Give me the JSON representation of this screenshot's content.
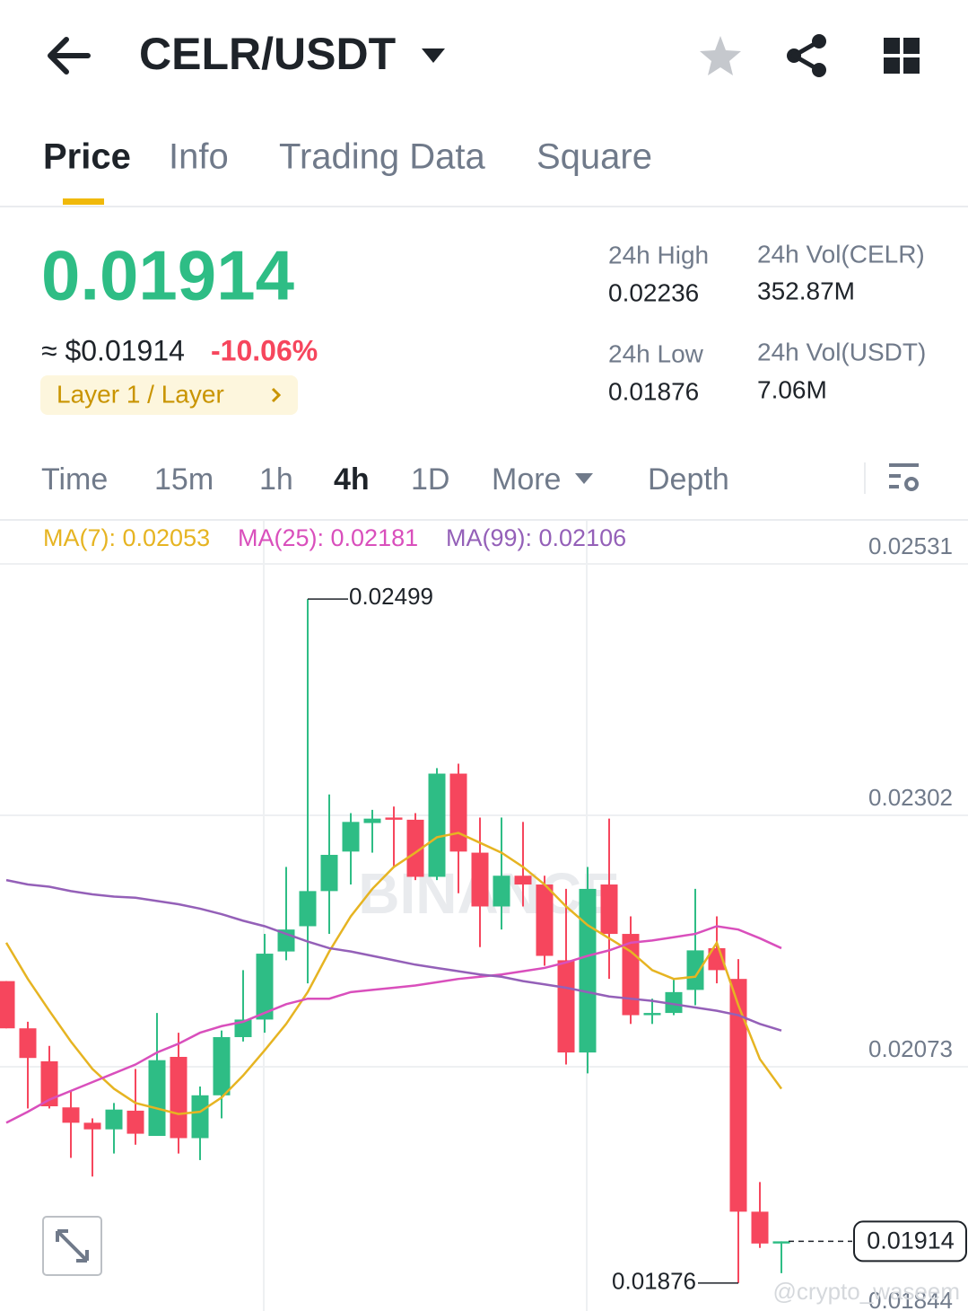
{
  "header": {
    "pair": "CELR/USDT"
  },
  "tabs": {
    "items": [
      "Price",
      "Info",
      "Trading Data",
      "Square"
    ],
    "active": 0
  },
  "ticker": {
    "price": "0.01914",
    "approx": "≈ $0.01914",
    "change": "-10.06%",
    "tag": "Layer 1 / Layer",
    "stats": [
      {
        "label": "24h High",
        "value": "0.02236"
      },
      {
        "label": "24h Vol(CELR)",
        "value": "352.87M"
      },
      {
        "label": "24h Low",
        "value": "0.01876"
      },
      {
        "label": "24h Vol(USDT)",
        "value": "7.06M"
      }
    ]
  },
  "intervals": {
    "items": [
      "Time",
      "15m",
      "1h",
      "4h",
      "1D",
      "More",
      "Depth"
    ],
    "active": 3
  },
  "chart": {
    "type": "candlestick",
    "up_color": "#2ebd85",
    "down_color": "#f6465d",
    "ylim": [
      0.01844,
      0.02531
    ],
    "yticks": [
      0.02531,
      0.02302,
      0.02073,
      0.01844
    ],
    "grid": true,
    "current_price": 0.01914,
    "annotations": [
      {
        "kind": "high",
        "value": 0.02499
      },
      {
        "kind": "low",
        "value": 0.01876
      }
    ],
    "watermark_logo": "BINANCE",
    "watermark": "@crypto_waseem",
    "candles": [
      {
        "open": 0.02151,
        "high": 0.02151,
        "low": 0.02108,
        "close": 0.02108
      },
      {
        "open": 0.02108,
        "high": 0.02114,
        "low": 0.02035,
        "close": 0.02081
      },
      {
        "open": 0.02078,
        "high": 0.02092,
        "low": 0.02035,
        "close": 0.02037
      },
      {
        "open": 0.02036,
        "high": 0.02051,
        "low": 0.0199,
        "close": 0.02022
      },
      {
        "open": 0.02022,
        "high": 0.02026,
        "low": 0.01973,
        "close": 0.02016
      },
      {
        "open": 0.02016,
        "high": 0.0204,
        "low": 0.01994,
        "close": 0.02034
      },
      {
        "open": 0.02033,
        "high": 0.02071,
        "low": 0.02002,
        "close": 0.02012
      },
      {
        "open": 0.0201,
        "high": 0.02122,
        "low": 0.0201,
        "close": 0.02079
      },
      {
        "open": 0.02082,
        "high": 0.02104,
        "low": 0.01994,
        "close": 0.02008
      },
      {
        "open": 0.02008,
        "high": 0.02055,
        "low": 0.01988,
        "close": 0.02047
      },
      {
        "open": 0.02047,
        "high": 0.02106,
        "low": 0.02026,
        "close": 0.021
      },
      {
        "open": 0.021,
        "high": 0.02161,
        "low": 0.02096,
        "close": 0.02116
      },
      {
        "open": 0.02116,
        "high": 0.02194,
        "low": 0.02104,
        "close": 0.02176
      },
      {
        "open": 0.02178,
        "high": 0.02255,
        "low": 0.0217,
        "close": 0.02198
      },
      {
        "open": 0.02201,
        "high": 0.02499,
        "low": 0.02149,
        "close": 0.02233
      },
      {
        "open": 0.02233,
        "high": 0.02321,
        "low": 0.02194,
        "close": 0.02266
      },
      {
        "open": 0.02269,
        "high": 0.02304,
        "low": 0.02239,
        "close": 0.02296
      },
      {
        "open": 0.02295,
        "high": 0.02307,
        "low": 0.02268,
        "close": 0.02299
      },
      {
        "open": 0.023,
        "high": 0.0231,
        "low": 0.02255,
        "close": 0.02298
      },
      {
        "open": 0.02298,
        "high": 0.02304,
        "low": 0.02243,
        "close": 0.02246
      },
      {
        "open": 0.02246,
        "high": 0.02345,
        "low": 0.02243,
        "close": 0.0234
      },
      {
        "open": 0.0234,
        "high": 0.02349,
        "low": 0.02231,
        "close": 0.02269
      },
      {
        "open": 0.02268,
        "high": 0.023,
        "low": 0.02182,
        "close": 0.02219
      },
      {
        "open": 0.02219,
        "high": 0.023,
        "low": 0.02198,
        "close": 0.02247
      },
      {
        "open": 0.02247,
        "high": 0.02296,
        "low": 0.02219,
        "close": 0.02239
      },
      {
        "open": 0.02239,
        "high": 0.02247,
        "low": 0.02165,
        "close": 0.02174
      },
      {
        "open": 0.0217,
        "high": 0.02235,
        "low": 0.02075,
        "close": 0.02086
      },
      {
        "open": 0.02086,
        "high": 0.02255,
        "low": 0.02067,
        "close": 0.02235
      },
      {
        "open": 0.02239,
        "high": 0.02299,
        "low": 0.02153,
        "close": 0.02194
      },
      {
        "open": 0.02194,
        "high": 0.0221,
        "low": 0.02112,
        "close": 0.0212
      },
      {
        "open": 0.0212,
        "high": 0.02135,
        "low": 0.02112,
        "close": 0.02122
      },
      {
        "open": 0.02122,
        "high": 0.02153,
        "low": 0.0212,
        "close": 0.02141
      },
      {
        "open": 0.02143,
        "high": 0.02235,
        "low": 0.02129,
        "close": 0.02179
      },
      {
        "open": 0.02181,
        "high": 0.0221,
        "low": 0.02149,
        "close": 0.02161
      },
      {
        "open": 0.02153,
        "high": 0.02171,
        "low": 0.01876,
        "close": 0.01941
      },
      {
        "open": 0.01941,
        "high": 0.01968,
        "low": 0.01908,
        "close": 0.01912
      },
      {
        "open": 0.01912,
        "high": 0.01914,
        "low": 0.01885,
        "close": 0.01914
      }
    ],
    "series": [
      {
        "name": "MA(7)",
        "legend_label": "MA(7): 0.02053",
        "color": "#e6b422",
        "values": [
          0.02186,
          0.02153,
          0.02124,
          0.02096,
          0.02071,
          0.02053,
          0.0204,
          0.02035,
          0.0203,
          0.02032,
          0.02045,
          0.02065,
          0.02088,
          0.02112,
          0.02141,
          0.02178,
          0.0221,
          0.02235,
          0.02255,
          0.02268,
          0.02282,
          0.02286,
          0.02277,
          0.02268,
          0.02255,
          0.02239,
          0.02219,
          0.02202,
          0.0219,
          0.02178,
          0.02161,
          0.02153,
          0.02155,
          0.02186,
          0.02129,
          0.0208,
          0.02053
        ]
      },
      {
        "name": "MA(25)",
        "legend_label": "MA(25): 0.02181",
        "color": "#d94fbc",
        "values": [
          0.02022,
          0.02032,
          0.02043,
          0.02051,
          0.02059,
          0.02067,
          0.02075,
          0.02086,
          0.02094,
          0.02104,
          0.0211,
          0.02114,
          0.02122,
          0.0213,
          0.02135,
          0.02135,
          0.02141,
          0.02143,
          0.02145,
          0.02147,
          0.0215,
          0.02153,
          0.02155,
          0.02157,
          0.0216,
          0.02163,
          0.02168,
          0.02174,
          0.02179,
          0.02186,
          0.02188,
          0.02191,
          0.02194,
          0.02201,
          0.02198,
          0.0219,
          0.02181
        ]
      },
      {
        "name": "MA(99)",
        "legend_label": "MA(99): 0.02106",
        "color": "#9460b8",
        "values": [
          0.02243,
          0.02239,
          0.02237,
          0.02233,
          0.0223,
          0.02228,
          0.02227,
          0.02224,
          0.02221,
          0.02217,
          0.02212,
          0.02206,
          0.02201,
          0.02194,
          0.02187,
          0.02181,
          0.02178,
          0.02174,
          0.0217,
          0.02166,
          0.02163,
          0.0216,
          0.02157,
          0.02155,
          0.02151,
          0.02148,
          0.02145,
          0.02141,
          0.02137,
          0.02135,
          0.02133,
          0.0213,
          0.02127,
          0.02124,
          0.0212,
          0.02112,
          0.02106
        ]
      }
    ]
  }
}
